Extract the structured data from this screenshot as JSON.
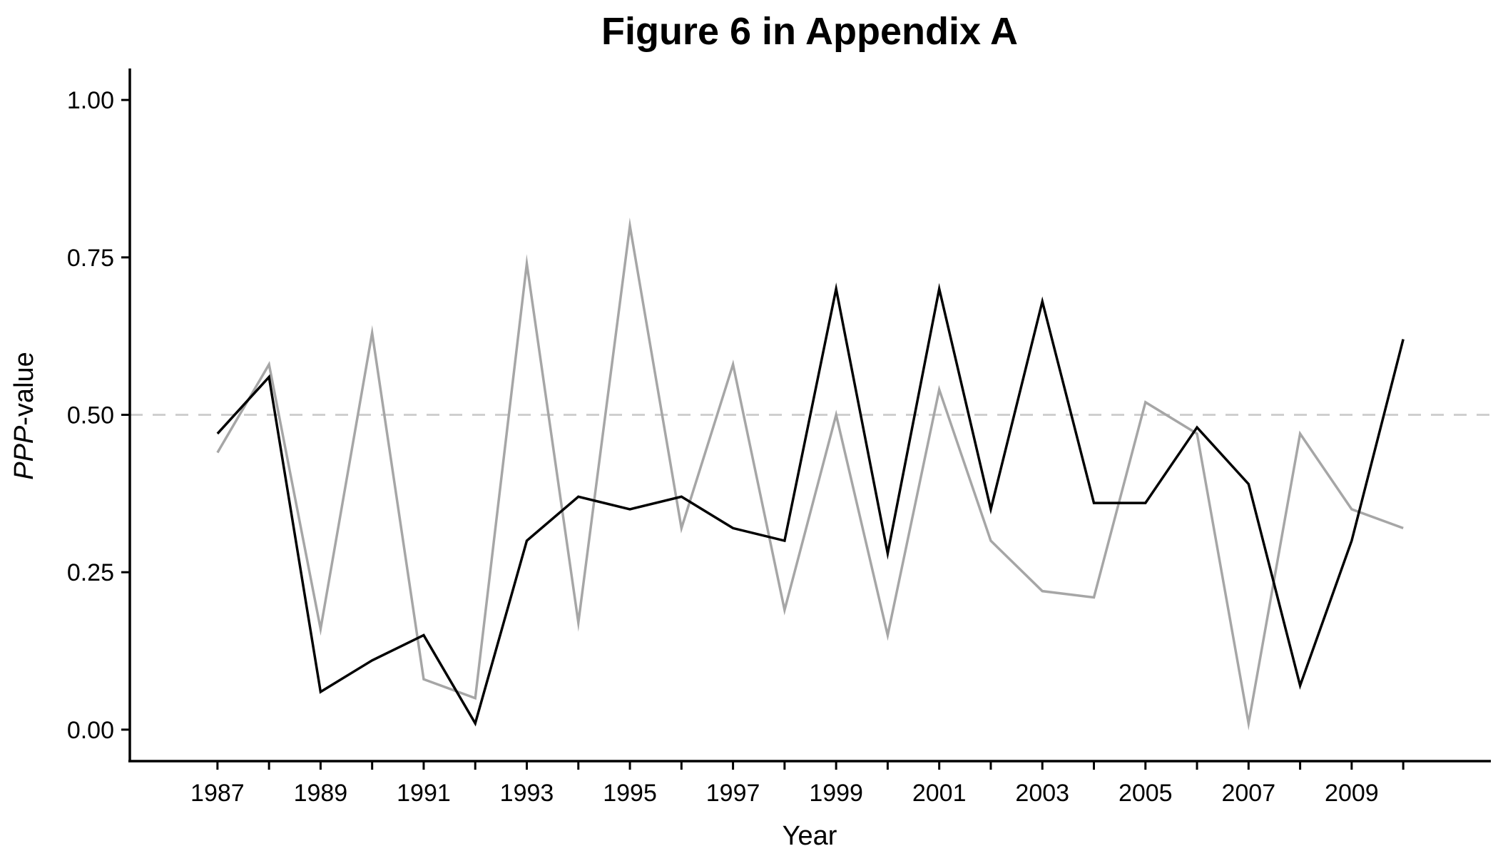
{
  "chart_data": {
    "type": "line",
    "title": "Figure 6 in Appendix A",
    "xlabel": "Year",
    "ylabel_italic": "PPP",
    "ylabel_rest": "-value",
    "x": [
      1987,
      1988,
      1989,
      1990,
      1991,
      1992,
      1993,
      1994,
      1995,
      1996,
      1997,
      1998,
      1999,
      2000,
      2001,
      2002,
      2003,
      2004,
      2005,
      2006,
      2007,
      2008,
      2009,
      2010
    ],
    "x_tick_labels": [
      "1987",
      "1989",
      "1991",
      "1993",
      "1995",
      "1997",
      "1999",
      "2001",
      "2003",
      "2005",
      "2007",
      "2009"
    ],
    "y_tick_labels": [
      "0.00",
      "0.25",
      "0.50",
      "0.75",
      "1.00"
    ],
    "y_ticks": [
      0,
      0.25,
      0.5,
      0.75,
      1.0
    ],
    "ylim": [
      -0.05,
      1.05
    ],
    "xlim": [
      1985.3,
      2011.7
    ],
    "reference_line": {
      "y": 0.5,
      "style": "dashed",
      "color": "#cfcfcf"
    },
    "grid": false,
    "series": [
      {
        "color": "#000000",
        "values": [
          0.47,
          0.56,
          0.06,
          0.11,
          0.15,
          0.01,
          0.3,
          0.37,
          0.35,
          0.37,
          0.32,
          0.3,
          0.7,
          0.28,
          0.7,
          0.35,
          0.68,
          0.36,
          0.36,
          0.48,
          0.39,
          0.07,
          0.3,
          0.62
        ]
      },
      {
        "color": "#a6a6a6",
        "values": [
          0.44,
          0.58,
          0.16,
          0.63,
          0.08,
          0.05,
          0.74,
          0.17,
          0.8,
          0.32,
          0.58,
          0.19,
          0.5,
          0.15,
          0.54,
          0.3,
          0.22,
          0.21,
          0.52,
          0.47,
          0.01,
          0.47,
          0.35,
          0.32
        ]
      }
    ]
  }
}
